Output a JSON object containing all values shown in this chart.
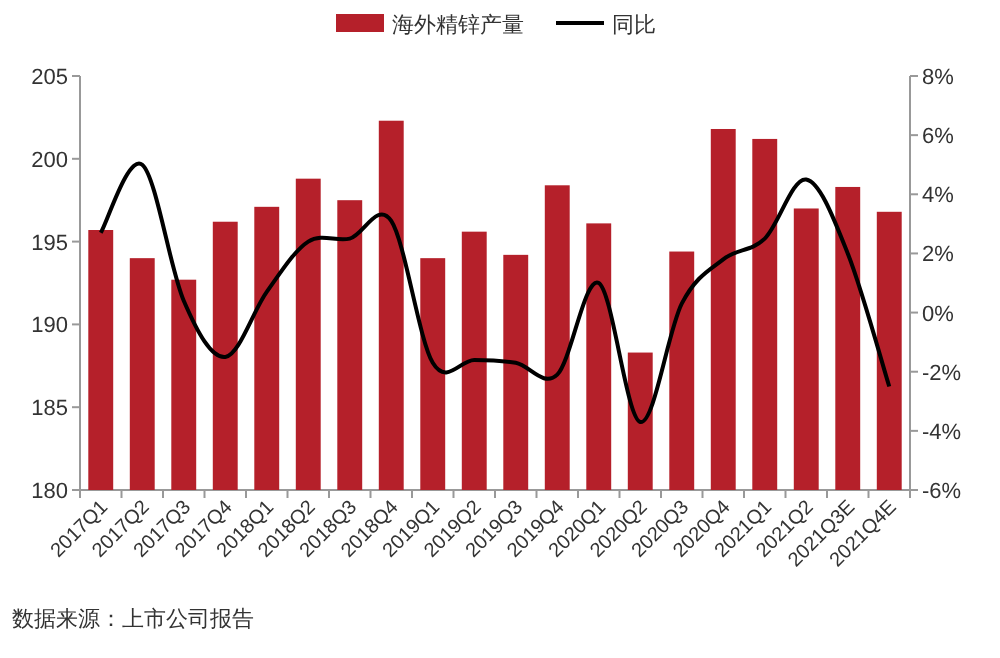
{
  "chart_data": {
    "type": "bar",
    "categories": [
      "2017Q1",
      "2017Q2",
      "2017Q3",
      "2017Q4",
      "2018Q1",
      "2018Q2",
      "2018Q3",
      "2018Q4",
      "2019Q1",
      "2019Q2",
      "2019Q3",
      "2019Q4",
      "2020Q1",
      "2020Q2",
      "2020Q3",
      "2020Q4",
      "2021Q1",
      "2021Q2",
      "2021Q3E",
      "2021Q4E"
    ],
    "series": [
      {
        "name": "海外精锌产量",
        "color": "#b5202a",
        "values": [
          195.7,
          194.0,
          192.7,
          196.2,
          197.1,
          198.8,
          197.5,
          202.3,
          194.0,
          195.6,
          194.2,
          198.4,
          196.1,
          188.3,
          194.4,
          201.8,
          201.2,
          197.0,
          198.3,
          196.8
        ]
      },
      {
        "name": "同比",
        "color": "#000000",
        "type": "line",
        "axis": "y2",
        "values": [
          2.7,
          5.0,
          0.4,
          -1.5,
          0.7,
          2.4,
          2.5,
          3.1,
          -1.7,
          -1.6,
          -1.7,
          -2.1,
          1.0,
          -3.7,
          0.3,
          1.8,
          2.5,
          4.5,
          2.0,
          -2.5
        ]
      }
    ],
    "ylim": [
      180,
      205
    ],
    "yticks": [
      180,
      185,
      190,
      195,
      200,
      205
    ],
    "y2lim": [
      -6,
      8
    ],
    "y2ticks": [
      {
        "value": -6,
        "label": "-6%"
      },
      {
        "value": -4,
        "label": "-4%"
      },
      {
        "value": -2,
        "label": "-2%"
      },
      {
        "value": 0,
        "label": "0%"
      },
      {
        "value": 2,
        "label": "2%"
      },
      {
        "value": 4,
        "label": "4%"
      },
      {
        "value": 6,
        "label": "6%"
      },
      {
        "value": 8,
        "label": "8%"
      }
    ],
    "legend": "top",
    "grid": false,
    "annotations": [
      "数据来源：上市公司报告"
    ]
  }
}
